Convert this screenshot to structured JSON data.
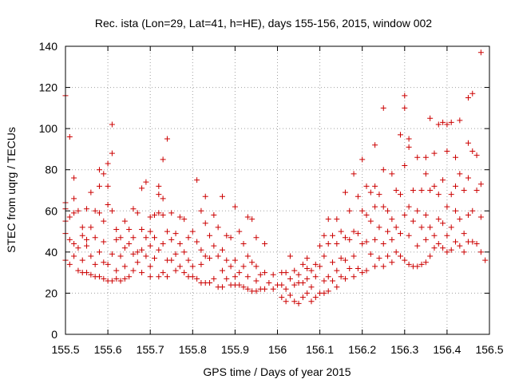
{
  "chart_data": {
    "type": "scatter",
    "title": "Rec. ista (Lon=29, Lat=41, h=HE), days 155-156, 2015, window 002",
    "xlabel": "GPS time / Days of year 2015",
    "ylabel": "STEC from uqrg / TECUs",
    "xlim": [
      155.5,
      156.5
    ],
    "ylim": [
      0,
      140
    ],
    "xticks": [
      155.5,
      155.6,
      155.7,
      155.8,
      155.9,
      156,
      156.1,
      156.2,
      156.3,
      156.4,
      156.5
    ],
    "xtick_labels": [
      "155.5",
      "155.6",
      "155.7",
      "155.8",
      "155.9",
      "156",
      "156.1",
      "156.2",
      "156.3",
      "156.4",
      "156.5"
    ],
    "yticks": [
      0,
      20,
      40,
      60,
      80,
      100,
      120,
      140
    ],
    "ytick_labels": [
      "0",
      "20",
      "40",
      "60",
      "80",
      "100",
      "120",
      "140"
    ],
    "grid": true,
    "marker": "plus",
    "color": "#cc0000",
    "points": [
      [
        155.5,
        116
      ],
      [
        155.5,
        64
      ],
      [
        155.5,
        61
      ],
      [
        155.5,
        55
      ],
      [
        155.5,
        49
      ],
      [
        155.5,
        36
      ],
      [
        155.51,
        34
      ],
      [
        155.51,
        96
      ],
      [
        155.51,
        57
      ],
      [
        155.51,
        46
      ],
      [
        155.52,
        76
      ],
      [
        155.52,
        66
      ],
      [
        155.52,
        59
      ],
      [
        155.52,
        44
      ],
      [
        155.52,
        38
      ],
      [
        155.53,
        60
      ],
      [
        155.53,
        42
      ],
      [
        155.53,
        31
      ],
      [
        155.54,
        52
      ],
      [
        155.54,
        48
      ],
      [
        155.54,
        36
      ],
      [
        155.54,
        30
      ],
      [
        155.55,
        61
      ],
      [
        155.55,
        46
      ],
      [
        155.55,
        43
      ],
      [
        155.55,
        30
      ],
      [
        155.56,
        69
      ],
      [
        155.56,
        52
      ],
      [
        155.56,
        38
      ],
      [
        155.56,
        29
      ],
      [
        155.57,
        60
      ],
      [
        155.57,
        47
      ],
      [
        155.57,
        34
      ],
      [
        155.57,
        28
      ],
      [
        155.58,
        80
      ],
      [
        155.58,
        72
      ],
      [
        155.58,
        59
      ],
      [
        155.58,
        40
      ],
      [
        155.58,
        28
      ],
      [
        155.59,
        78
      ],
      [
        155.59,
        55
      ],
      [
        155.59,
        45
      ],
      [
        155.59,
        35
      ],
      [
        155.59,
        27
      ],
      [
        155.6,
        83
      ],
      [
        155.6,
        72
      ],
      [
        155.6,
        63
      ],
      [
        155.6,
        34
      ],
      [
        155.6,
        26
      ],
      [
        155.61,
        102
      ],
      [
        155.61,
        88
      ],
      [
        155.61,
        60
      ],
      [
        155.61,
        39
      ],
      [
        155.61,
        26
      ],
      [
        155.62,
        51
      ],
      [
        155.62,
        46
      ],
      [
        155.62,
        31
      ],
      [
        155.62,
        27
      ],
      [
        155.63,
        47
      ],
      [
        155.63,
        38
      ],
      [
        155.63,
        26
      ],
      [
        155.64,
        55
      ],
      [
        155.64,
        42
      ],
      [
        155.64,
        33
      ],
      [
        155.64,
        27
      ],
      [
        155.65,
        51
      ],
      [
        155.65,
        44
      ],
      [
        155.65,
        28
      ],
      [
        155.66,
        61
      ],
      [
        155.66,
        47
      ],
      [
        155.66,
        39
      ],
      [
        155.66,
        31
      ],
      [
        155.67,
        59
      ],
      [
        155.67,
        40
      ],
      [
        155.67,
        35
      ],
      [
        155.68,
        71
      ],
      [
        155.68,
        51
      ],
      [
        155.68,
        41
      ],
      [
        155.68,
        30
      ],
      [
        155.69,
        74
      ],
      [
        155.69,
        47
      ],
      [
        155.69,
        38
      ],
      [
        155.7,
        57
      ],
      [
        155.7,
        50
      ],
      [
        155.7,
        43
      ],
      [
        155.7,
        33
      ],
      [
        155.7,
        28
      ],
      [
        155.71,
        58
      ],
      [
        155.71,
        47
      ],
      [
        155.71,
        37
      ],
      [
        155.72,
        72
      ],
      [
        155.72,
        68
      ],
      [
        155.72,
        59
      ],
      [
        155.72,
        41
      ],
      [
        155.72,
        28
      ],
      [
        155.73,
        85
      ],
      [
        155.73,
        66
      ],
      [
        155.73,
        58
      ],
      [
        155.73,
        44
      ],
      [
        155.73,
        30
      ],
      [
        155.74,
        95
      ],
      [
        155.74,
        50
      ],
      [
        155.74,
        36
      ],
      [
        155.74,
        28
      ],
      [
        155.75,
        59
      ],
      [
        155.75,
        46
      ],
      [
        155.75,
        36
      ],
      [
        155.76,
        49
      ],
      [
        155.76,
        39
      ],
      [
        155.76,
        31
      ],
      [
        155.77,
        57
      ],
      [
        155.77,
        44
      ],
      [
        155.77,
        33
      ],
      [
        155.78,
        56
      ],
      [
        155.78,
        40
      ],
      [
        155.78,
        30
      ],
      [
        155.79,
        47
      ],
      [
        155.79,
        36
      ],
      [
        155.79,
        28
      ],
      [
        155.8,
        50
      ],
      [
        155.8,
        33
      ],
      [
        155.8,
        28
      ],
      [
        155.81,
        75
      ],
      [
        155.81,
        45
      ],
      [
        155.81,
        27
      ],
      [
        155.82,
        60
      ],
      [
        155.82,
        41
      ],
      [
        155.82,
        34
      ],
      [
        155.82,
        25
      ],
      [
        155.83,
        67
      ],
      [
        155.83,
        54
      ],
      [
        155.83,
        38
      ],
      [
        155.83,
        25
      ],
      [
        155.84,
        48
      ],
      [
        155.84,
        37
      ],
      [
        155.84,
        25
      ],
      [
        155.85,
        58
      ],
      [
        155.85,
        43
      ],
      [
        155.85,
        27
      ],
      [
        155.86,
        52
      ],
      [
        155.86,
        38
      ],
      [
        155.86,
        23
      ],
      [
        155.87,
        67
      ],
      [
        155.87,
        41
      ],
      [
        155.87,
        31
      ],
      [
        155.87,
        23
      ],
      [
        155.88,
        48
      ],
      [
        155.88,
        36
      ],
      [
        155.88,
        27
      ],
      [
        155.89,
        47
      ],
      [
        155.89,
        33
      ],
      [
        155.89,
        24
      ],
      [
        155.9,
        62
      ],
      [
        155.9,
        36
      ],
      [
        155.9,
        28
      ],
      [
        155.9,
        24
      ],
      [
        155.91,
        50
      ],
      [
        155.91,
        30
      ],
      [
        155.91,
        24
      ],
      [
        155.92,
        44
      ],
      [
        155.92,
        33
      ],
      [
        155.92,
        23
      ],
      [
        155.93,
        57
      ],
      [
        155.93,
        38
      ],
      [
        155.93,
        28
      ],
      [
        155.93,
        22
      ],
      [
        155.94,
        56
      ],
      [
        155.94,
        35
      ],
      [
        155.94,
        21
      ],
      [
        155.95,
        47
      ],
      [
        155.95,
        33
      ],
      [
        155.95,
        26
      ],
      [
        155.95,
        21
      ],
      [
        155.96,
        29
      ],
      [
        155.96,
        22
      ],
      [
        155.97,
        44
      ],
      [
        155.97,
        30
      ],
      [
        155.97,
        22
      ],
      [
        155.98,
        25
      ],
      [
        155.99,
        29
      ],
      [
        155.99,
        22
      ],
      [
        156.0,
        24
      ],
      [
        156.01,
        30
      ],
      [
        156.01,
        24
      ],
      [
        156.01,
        18
      ],
      [
        156.02,
        30
      ],
      [
        156.02,
        22
      ],
      [
        156.02,
        16
      ],
      [
        156.03,
        38
      ],
      [
        156.03,
        27
      ],
      [
        156.03,
        19
      ],
      [
        156.04,
        31
      ],
      [
        156.04,
        24
      ],
      [
        156.04,
        16
      ],
      [
        156.05,
        29
      ],
      [
        156.05,
        25
      ],
      [
        156.05,
        15
      ],
      [
        156.06,
        34
      ],
      [
        156.06,
        25
      ],
      [
        156.06,
        18
      ],
      [
        156.07,
        37
      ],
      [
        156.07,
        32
      ],
      [
        156.07,
        27
      ],
      [
        156.07,
        20
      ],
      [
        156.08,
        31
      ],
      [
        156.08,
        23
      ],
      [
        156.08,
        16
      ],
      [
        156.09,
        34
      ],
      [
        156.09,
        28
      ],
      [
        156.09,
        18
      ],
      [
        156.1,
        43
      ],
      [
        156.1,
        33
      ],
      [
        156.1,
        20
      ],
      [
        156.11,
        48
      ],
      [
        156.11,
        38
      ],
      [
        156.11,
        26
      ],
      [
        156.11,
        20
      ],
      [
        156.12,
        56
      ],
      [
        156.12,
        44
      ],
      [
        156.12,
        28
      ],
      [
        156.12,
        21
      ],
      [
        156.13,
        48
      ],
      [
        156.13,
        35
      ],
      [
        156.13,
        26
      ],
      [
        156.14,
        56
      ],
      [
        156.14,
        44
      ],
      [
        156.14,
        31
      ],
      [
        156.14,
        23
      ],
      [
        156.15,
        50
      ],
      [
        156.15,
        37
      ],
      [
        156.15,
        28
      ],
      [
        156.16,
        69
      ],
      [
        156.16,
        47
      ],
      [
        156.16,
        36
      ],
      [
        156.16,
        27
      ],
      [
        156.17,
        60
      ],
      [
        156.17,
        46
      ],
      [
        156.17,
        32
      ],
      [
        156.18,
        78
      ],
      [
        156.18,
        50
      ],
      [
        156.18,
        38
      ],
      [
        156.18,
        28
      ],
      [
        156.19,
        67
      ],
      [
        156.19,
        49
      ],
      [
        156.19,
        32
      ],
      [
        156.2,
        85
      ],
      [
        156.2,
        60
      ],
      [
        156.2,
        44
      ],
      [
        156.2,
        30
      ],
      [
        156.21,
        72
      ],
      [
        156.21,
        58
      ],
      [
        156.21,
        45
      ],
      [
        156.21,
        31
      ],
      [
        156.22,
        69
      ],
      [
        156.22,
        55
      ],
      [
        156.22,
        39
      ],
      [
        156.23,
        92
      ],
      [
        156.23,
        72
      ],
      [
        156.23,
        62
      ],
      [
        156.23,
        46
      ],
      [
        156.23,
        33
      ],
      [
        156.24,
        68
      ],
      [
        156.24,
        52
      ],
      [
        156.24,
        37
      ],
      [
        156.25,
        110
      ],
      [
        156.25,
        80
      ],
      [
        156.25,
        62
      ],
      [
        156.25,
        44
      ],
      [
        156.25,
        33
      ],
      [
        156.26,
        60
      ],
      [
        156.26,
        50
      ],
      [
        156.26,
        38
      ],
      [
        156.27,
        78
      ],
      [
        156.27,
        56
      ],
      [
        156.27,
        46
      ],
      [
        156.27,
        35
      ],
      [
        156.28,
        70
      ],
      [
        156.28,
        52
      ],
      [
        156.28,
        40
      ],
      [
        156.29,
        97
      ],
      [
        156.29,
        68
      ],
      [
        156.29,
        49
      ],
      [
        156.29,
        38
      ],
      [
        156.3,
        116
      ],
      [
        156.3,
        110
      ],
      [
        156.3,
        82
      ],
      [
        156.3,
        58
      ],
      [
        156.3,
        36
      ],
      [
        156.31,
        95
      ],
      [
        156.31,
        91
      ],
      [
        156.31,
        62
      ],
      [
        156.31,
        48
      ],
      [
        156.31,
        34
      ],
      [
        156.32,
        70
      ],
      [
        156.32,
        55
      ],
      [
        156.32,
        33
      ],
      [
        156.33,
        86
      ],
      [
        156.33,
        60
      ],
      [
        156.33,
        43
      ],
      [
        156.33,
        33
      ],
      [
        156.34,
        70
      ],
      [
        156.34,
        52
      ],
      [
        156.34,
        34
      ],
      [
        156.35,
        86
      ],
      [
        156.35,
        78
      ],
      [
        156.35,
        58
      ],
      [
        156.35,
        46
      ],
      [
        156.35,
        35
      ],
      [
        156.36,
        105
      ],
      [
        156.36,
        70
      ],
      [
        156.36,
        52
      ],
      [
        156.36,
        38
      ],
      [
        156.37,
        88
      ],
      [
        156.37,
        72
      ],
      [
        156.37,
        48
      ],
      [
        156.37,
        42
      ],
      [
        156.38,
        102
      ],
      [
        156.38,
        68
      ],
      [
        156.38,
        56
      ],
      [
        156.38,
        44
      ],
      [
        156.39,
        103
      ],
      [
        156.39,
        75
      ],
      [
        156.39,
        54
      ],
      [
        156.39,
        42
      ],
      [
        156.4,
        102
      ],
      [
        156.4,
        89
      ],
      [
        156.4,
        62
      ],
      [
        156.4,
        48
      ],
      [
        156.4,
        40
      ],
      [
        156.41,
        103
      ],
      [
        156.41,
        68
      ],
      [
        156.41,
        52
      ],
      [
        156.41,
        41
      ],
      [
        156.42,
        86
      ],
      [
        156.42,
        72
      ],
      [
        156.42,
        60
      ],
      [
        156.42,
        45
      ],
      [
        156.43,
        104
      ],
      [
        156.43,
        78
      ],
      [
        156.43,
        56
      ],
      [
        156.43,
        43
      ],
      [
        156.44,
        70
      ],
      [
        156.44,
        49
      ],
      [
        156.44,
        40
      ],
      [
        156.45,
        115
      ],
      [
        156.45,
        93
      ],
      [
        156.45,
        76
      ],
      [
        156.45,
        58
      ],
      [
        156.45,
        45
      ],
      [
        156.46,
        117
      ],
      [
        156.46,
        89
      ],
      [
        156.46,
        60
      ],
      [
        156.46,
        45
      ],
      [
        156.47,
        87
      ],
      [
        156.47,
        70
      ],
      [
        156.47,
        44
      ],
      [
        156.48,
        137
      ],
      [
        156.48,
        73
      ],
      [
        156.48,
        57
      ],
      [
        156.48,
        40
      ],
      [
        156.49,
        36
      ]
    ]
  }
}
